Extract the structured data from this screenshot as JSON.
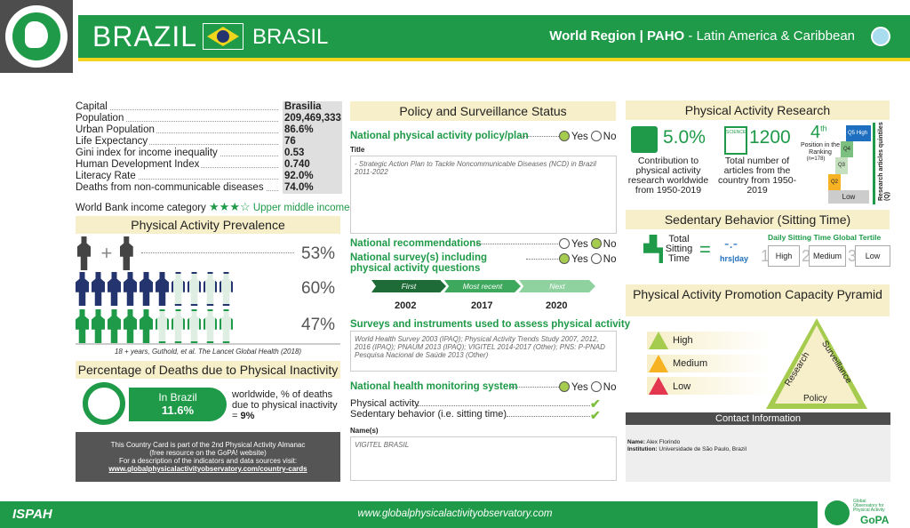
{
  "header": {
    "country": "BRAZIL",
    "country_native": "BRASIL",
    "region_label": "World Region | PAHO",
    "region_name": " - Latin America & Caribbean"
  },
  "country_info": [
    {
      "label": "Capital",
      "value": "Brasilia"
    },
    {
      "label": "Population",
      "value": "209,469,333"
    },
    {
      "label": "Urban Population",
      "value": "86.6%"
    },
    {
      "label": "Life Expectancy",
      "value": "76"
    },
    {
      "label": "Gini index for income inequality",
      "value": "0.53"
    },
    {
      "label": "Human Development Index",
      "value": "0.740"
    },
    {
      "label": "Literacy Rate",
      "value": "92.0%"
    },
    {
      "label": "Deaths from non-communicable diseases",
      "value": "74.0%"
    }
  ],
  "world_bank": {
    "label": "World Bank income category",
    "value": "Upper middle income",
    "stars_filled": 3,
    "stars_total": 4
  },
  "prevalence": {
    "title": "Physical Activity Prevalence",
    "overall": "53%",
    "men": "60%",
    "women": "47%",
    "men_fraction": 0.6,
    "women_fraction": 0.47,
    "source": "18 + years, Guthold, et al. The Lancet Global Health (2018)"
  },
  "deaths": {
    "title": "Percentage of Deaths due to Physical Inactivity",
    "in_brazil_label": "In Brazil",
    "in_brazil_value": "11.6%",
    "worldwide_text": "worldwide, % of deaths due to physical inactivity = ",
    "worldwide_value": "9%"
  },
  "note": {
    "line1": "This Country Card is part of the 2nd Physical Activity Almanac",
    "line2": "(free resource on the GoPA! website)",
    "line3": "For a description of the indicators and data sources visit:",
    "link": "www.globalphysicalactivityobservatory.com/country-cards"
  },
  "policy": {
    "title": "Policy and Surveillance Status",
    "q1": "National physical activity policy/plan",
    "yes": "Yes",
    "no": "No",
    "title_label": "Title",
    "title_text": "- Strategic Action Plan to Tackle Noncommunicable Diseases (NCD) in Brazil 2011-2022",
    "q2": "National recommendations",
    "q3": "National survey(s) including physical activity questions",
    "timeline": [
      {
        "label": "First",
        "year": "2002"
      },
      {
        "label": "Most recent",
        "year": "2017"
      },
      {
        "label": "Next",
        "year": "2020"
      }
    ],
    "surveys_title": "Surveys and instruments used to assess physical activity",
    "surveys_text": "World Health Survey 2003 (IPAQ); Physical Activity Trends Study 2007, 2012, 2016 (IPAQ); PNAUM 2013 (IPAQ); VIGITEL 2014-2017 (Other); PNS: P-PNAD Pesquisa Nacional de Saúde 2013 (Other)",
    "q4": "National health monitoring system",
    "monitor1": "Physical activity",
    "monitor2": "Sedentary behavior (i.e. sitting time)",
    "names_label": "Name(s)",
    "names_text": "VIGITEL BRASIL"
  },
  "research": {
    "title": "Physical Activity Research",
    "contribution": "5.0%",
    "contribution_text": "Contribution to physical activity research worldwide from 1950-2019",
    "articles": "1200",
    "articles_text": "Total number of articles from the country from 1950-2019",
    "science_label": "SCIENCE",
    "rank": "4",
    "rank_suffix": "th",
    "rank_text": "Position in the Ranking",
    "rank_n": "(n=178)",
    "quintiles_label": "Research articles quintiles (Q)",
    "q_high": "High",
    "q_low": "Low",
    "q_labels": [
      "Q5",
      "Q4",
      "Q3",
      "Q2"
    ]
  },
  "sedentary": {
    "title": "Sedentary Behavior (Sitting Time)",
    "total_label": "Total Sitting Time",
    "eq": "=",
    "value": "-.-",
    "unit": "hrs|day",
    "tertile_title": "Daily Sitting Time Global Tertile",
    "tertiles": [
      {
        "n": "1",
        "label": "High"
      },
      {
        "n": "2",
        "label": "Medium"
      },
      {
        "n": "3",
        "label": "Low"
      }
    ]
  },
  "pyramid": {
    "title": "Physical Activity Promotion Capacity Pyramid",
    "levels": [
      "High",
      "Medium",
      "Low"
    ],
    "sides": [
      "Research",
      "Surveillance",
      "Policy"
    ]
  },
  "contact": {
    "title": "Contact Information",
    "name_label": "Name:",
    "name": "Alex Florindo",
    "inst_label": "Institution:",
    "inst": "Universidade de São Paulo, Brazil"
  },
  "footer": {
    "ispah": "ISPAH",
    "url": "www.globalphysicalactivityobservatory.com",
    "gopa_small": "Global Observatory for Physical Activity",
    "gopa": "GoPA"
  },
  "colors": {
    "green": "#1e9a48",
    "yellow": "#f1d51c",
    "beige": "#f7efc9",
    "navy": "#23346e",
    "gray_dark": "#4d4d4d"
  }
}
